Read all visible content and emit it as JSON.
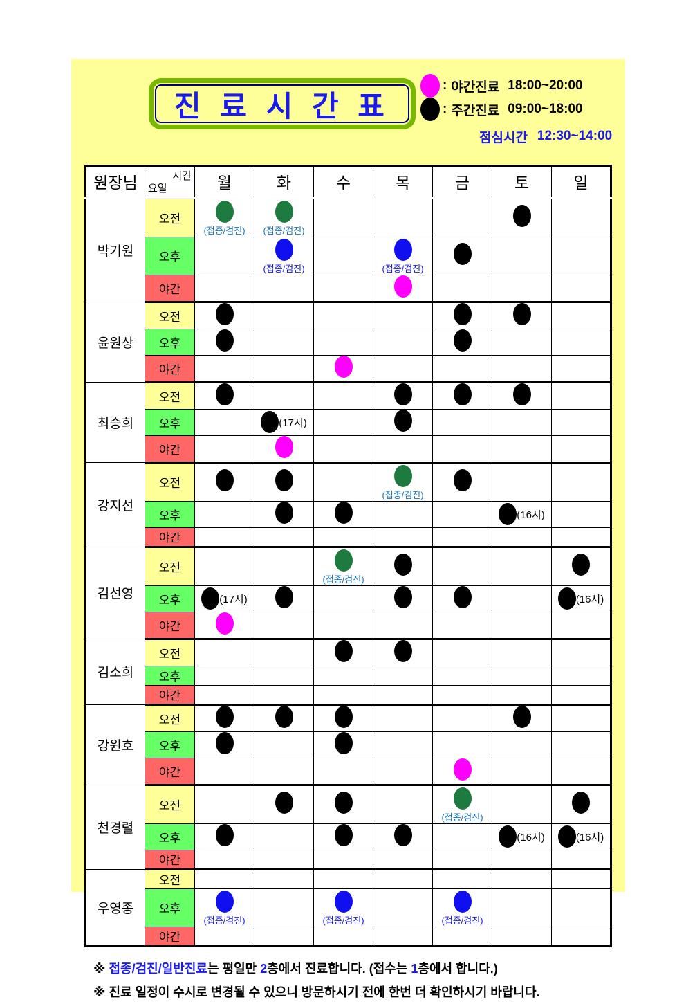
{
  "title": {
    "text": "진 료 시 간 표"
  },
  "legend": {
    "colon": ":",
    "items": [
      {
        "marker": "night",
        "label": "야간진료",
        "time": "18:00~20:00"
      },
      {
        "marker": "day",
        "label": "주간진료",
        "time": "09:00~18:00"
      }
    ],
    "lunch": {
      "label": "점심시간",
      "time": "12:30~14:00"
    }
  },
  "table": {
    "doctor_header": "원장님",
    "corner": {
      "top_right": "시간",
      "bottom_left": "요일"
    },
    "days": [
      "월",
      "화",
      "수",
      "목",
      "금",
      "토",
      "일"
    ],
    "sunday_index": 6,
    "periods": [
      "오전",
      "오후",
      "야간"
    ],
    "doctors": [
      {
        "name": "박기원",
        "rows": [
          {
            "cells": [
              {
                "m": "green",
                "lb": "(접종/검진)"
              },
              {
                "m": "green",
                "lb": "(접종/검진)"
              },
              null,
              null,
              null,
              {
                "m": "black"
              },
              null
            ]
          },
          {
            "cells": [
              null,
              {
                "m": "blue",
                "lb": "(접종/검진)"
              },
              null,
              {
                "m": "blue",
                "lb": "(접종/검진)"
              },
              {
                "m": "black"
              },
              null,
              null
            ]
          },
          {
            "cells": [
              null,
              null,
              null,
              {
                "m": "magenta"
              },
              null,
              null,
              null
            ]
          }
        ]
      },
      {
        "name": "윤원상",
        "rows": [
          {
            "cells": [
              {
                "m": "black"
              },
              null,
              null,
              null,
              {
                "m": "black"
              },
              {
                "m": "black"
              },
              null
            ]
          },
          {
            "cells": [
              {
                "m": "black"
              },
              null,
              null,
              null,
              {
                "m": "black"
              },
              null,
              null
            ]
          },
          {
            "cells": [
              null,
              null,
              {
                "m": "magenta"
              },
              null,
              null,
              null,
              null
            ]
          }
        ]
      },
      {
        "name": "최승희",
        "rows": [
          {
            "cells": [
              {
                "m": "black"
              },
              null,
              null,
              {
                "m": "black"
              },
              {
                "m": "black"
              },
              {
                "m": "black"
              },
              null
            ]
          },
          {
            "cells": [
              null,
              {
                "m": "black",
                "li": "(17시)"
              },
              null,
              {
                "m": "black"
              },
              null,
              null,
              null
            ]
          },
          {
            "cells": [
              null,
              {
                "m": "magenta"
              },
              null,
              null,
              null,
              null,
              null
            ]
          }
        ]
      },
      {
        "name": "강지선",
        "rows": [
          {
            "cells": [
              {
                "m": "black"
              },
              {
                "m": "black"
              },
              null,
              {
                "m": "green",
                "lb": "(접종/검진)"
              },
              {
                "m": "black"
              },
              null,
              null
            ]
          },
          {
            "cells": [
              null,
              {
                "m": "black"
              },
              {
                "m": "black"
              },
              null,
              null,
              {
                "m": "black",
                "li": "(16시)"
              },
              null
            ]
          },
          {
            "cells": [
              null,
              null,
              null,
              null,
              null,
              null,
              null
            ]
          }
        ]
      },
      {
        "name": "김선영",
        "rows": [
          {
            "cells": [
              null,
              null,
              {
                "m": "green",
                "lb": "(접종/검진)"
              },
              {
                "m": "black"
              },
              null,
              null,
              {
                "m": "black"
              }
            ]
          },
          {
            "cells": [
              {
                "m": "black",
                "li": "(17시)"
              },
              {
                "m": "black"
              },
              null,
              {
                "m": "black"
              },
              {
                "m": "black"
              },
              null,
              {
                "m": "black",
                "li": "(16시)"
              }
            ]
          },
          {
            "cells": [
              {
                "m": "magenta"
              },
              null,
              null,
              null,
              null,
              null,
              null
            ]
          }
        ]
      },
      {
        "name": "김소희",
        "rows": [
          {
            "cells": [
              null,
              null,
              {
                "m": "black"
              },
              {
                "m": "black"
              },
              null,
              null,
              null
            ]
          },
          {
            "cells": [
              null,
              null,
              null,
              null,
              null,
              null,
              null
            ]
          },
          {
            "cells": [
              null,
              null,
              null,
              null,
              null,
              null,
              null
            ]
          }
        ]
      },
      {
        "name": "강원호",
        "rows": [
          {
            "cells": [
              {
                "m": "black"
              },
              {
                "m": "black"
              },
              {
                "m": "black"
              },
              null,
              null,
              {
                "m": "black"
              },
              null
            ]
          },
          {
            "cells": [
              {
                "m": "black"
              },
              null,
              {
                "m": "black"
              },
              null,
              null,
              null,
              null
            ]
          },
          {
            "cells": [
              null,
              null,
              null,
              null,
              {
                "m": "magenta"
              },
              null,
              null
            ]
          }
        ]
      },
      {
        "name": "천경렬",
        "rows": [
          {
            "cells": [
              null,
              {
                "m": "black"
              },
              {
                "m": "black"
              },
              null,
              {
                "m": "green",
                "lb": "(접종/검진)"
              },
              null,
              {
                "m": "black"
              }
            ]
          },
          {
            "cells": [
              {
                "m": "black"
              },
              null,
              {
                "m": "black"
              },
              {
                "m": "black"
              },
              null,
              {
                "m": "black",
                "li": "(16시)"
              },
              {
                "m": "black",
                "li": "(16시)"
              }
            ]
          },
          {
            "cells": [
              null,
              null,
              null,
              null,
              null,
              null,
              null
            ]
          }
        ]
      },
      {
        "name": "우영종",
        "rows": [
          {
            "cells": [
              null,
              null,
              null,
              null,
              null,
              null,
              null
            ]
          },
          {
            "cells": [
              {
                "m": "blue",
                "lb": "(접종/검진)"
              },
              null,
              {
                "m": "blue",
                "lb": "(접종/검진)"
              },
              null,
              {
                "m": "blue",
                "lb": "(접종/검진)"
              },
              null,
              null
            ]
          },
          {
            "cells": [
              null,
              null,
              null,
              null,
              null,
              null,
              null
            ]
          }
        ]
      }
    ]
  },
  "footer": {
    "notes": [
      {
        "segments": [
          {
            "t": "※ ",
            "c": "black"
          },
          {
            "t": "접종/검진/일반진료",
            "c": "blue"
          },
          {
            "t": "는 평일만 ",
            "c": "black"
          },
          {
            "t": "2",
            "c": "blue"
          },
          {
            "t": "층에서 진료합니다. (접수는 ",
            "c": "black"
          },
          {
            "t": "1",
            "c": "blue"
          },
          {
            "t": "층에서 합니다.)",
            "c": "black"
          }
        ]
      },
      {
        "segments": [
          {
            "t": "※ 진료 일정이 수시로 변경될 수 있으니 방문하시기 전에 한번 더 확인하시기 바랍니다.",
            "c": "black"
          }
        ]
      }
    ]
  },
  "colors": {
    "panel_bg": "#ffff99",
    "title_text": "#1a1aee",
    "title_border": "#79b800",
    "title_inner_border": "#000080",
    "sunday_bg": "#ff0000",
    "lunch_text": "#1a1aee",
    "footer_blue": "#1a1aee",
    "period_bg_am": "#ffff99",
    "period_bg_pm": "#66ff66",
    "period_bg_night": "#ff6666",
    "markers": {
      "black": "#000000",
      "green": "#1e7b40",
      "blue": "#0f0fef",
      "magenta": "#ff00ff"
    },
    "label_below_green": "#1b74c2",
    "label_below_blue": "#1a1aee"
  }
}
